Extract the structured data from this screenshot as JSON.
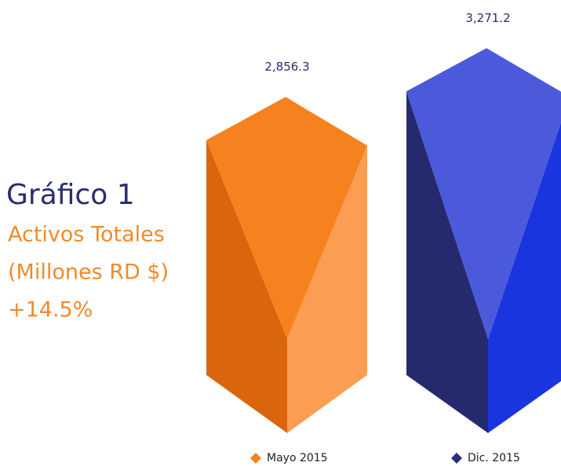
{
  "chart_data": {
    "type": "bar",
    "title": "Gráfico 1",
    "subtitle": [
      "Activos Totales",
      "(Millones RD $)",
      "+14.5%"
    ],
    "categories": [
      "Mayo 2015",
      "Dic. 2015"
    ],
    "values": [
      2856.3,
      3271.2
    ],
    "value_labels": [
      "2,856.3",
      "3,271.2"
    ],
    "colors": [
      {
        "top": "#f5821f",
        "left": "#d9650c",
        "right": "#fd9d51",
        "legend": "#f5821f"
      },
      {
        "top": "#4a5adb",
        "left": "#252a6e",
        "right": "#1a35e0",
        "legend": "#2a2f7a"
      }
    ]
  }
}
